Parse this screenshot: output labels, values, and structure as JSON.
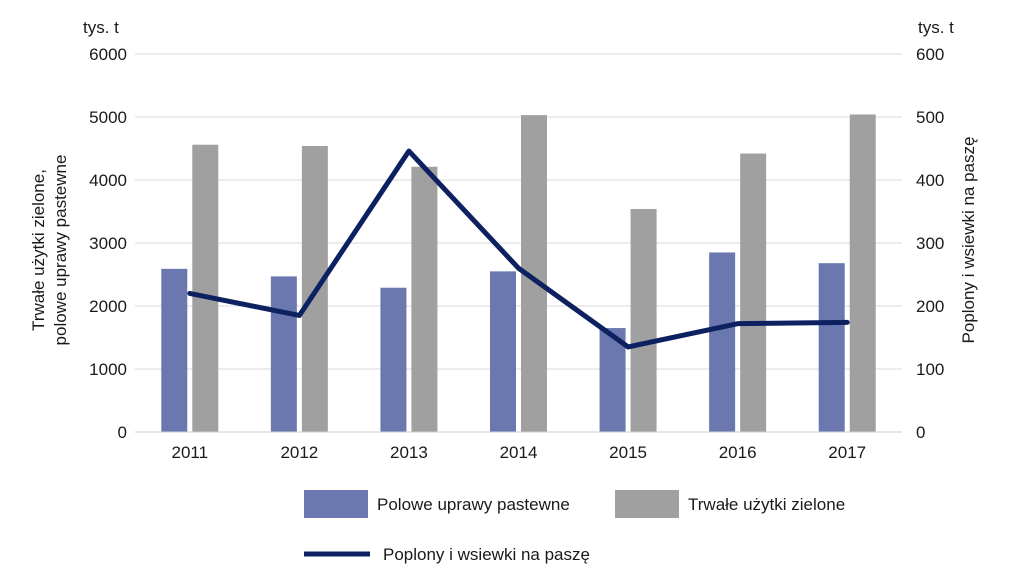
{
  "chart_data": {
    "type": "bar",
    "categories": [
      "2011",
      "2012",
      "2013",
      "2014",
      "2015",
      "2016",
      "2017"
    ],
    "series": [
      {
        "name": "Polowe uprawy pastewne",
        "type": "bar",
        "axis": "left",
        "color": "#6b78b0",
        "values": [
          2590,
          2470,
          2290,
          2550,
          1650,
          2850,
          2680
        ]
      },
      {
        "name": "Trwałe użytki zielone",
        "type": "bar",
        "axis": "left",
        "color": "#a0a0a0",
        "values": [
          4560,
          4540,
          4210,
          5030,
          3540,
          4420,
          5040
        ]
      },
      {
        "name": "Poplony i wsiewki na paszę",
        "type": "line",
        "axis": "right",
        "color": "#0d2160",
        "values": [
          220,
          185,
          446,
          260,
          135,
          172,
          174
        ]
      }
    ],
    "y_left": {
      "unit": "tys. t",
      "label": [
        "Trwałe użytki zielone,",
        "polowe uprawy pastewne"
      ],
      "ylim": [
        0,
        6000
      ],
      "ticks": [
        "0",
        "1000",
        "2000",
        "3000",
        "4000",
        "5000",
        "6000"
      ]
    },
    "y_right": {
      "unit": "tys. t",
      "label": "Poplony i wsiewki na paszę",
      "ylim": [
        0,
        600
      ],
      "ticks": [
        "0",
        "100",
        "200",
        "300",
        "400",
        "500",
        "600"
      ]
    },
    "grid": true,
    "legend_position": "bottom"
  }
}
